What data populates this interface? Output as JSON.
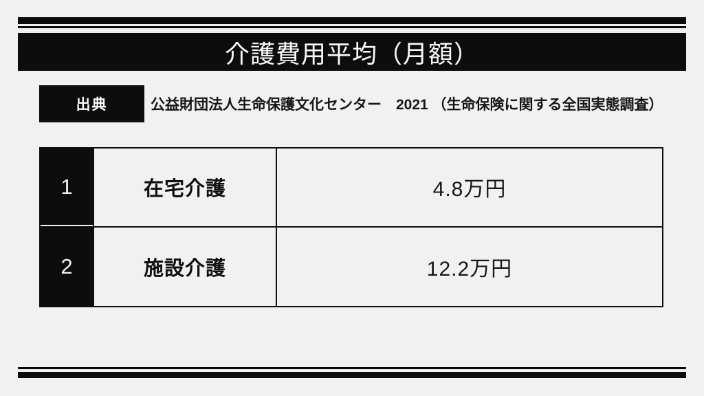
{
  "page": {
    "background_color": "#f1f1ef",
    "accent_color": "#0d0d0d"
  },
  "title": "介護費用平均（月額）",
  "source": {
    "label": "出典",
    "text": "公益財団法人生命保護文化センター　2021 （生命保険に関する全国実態調査）"
  },
  "table": {
    "rows": [
      {
        "num": "1",
        "label": "在宅介護",
        "value": "4.8万円"
      },
      {
        "num": "2",
        "label": "施設介護",
        "value": "12.2万円"
      }
    ]
  }
}
